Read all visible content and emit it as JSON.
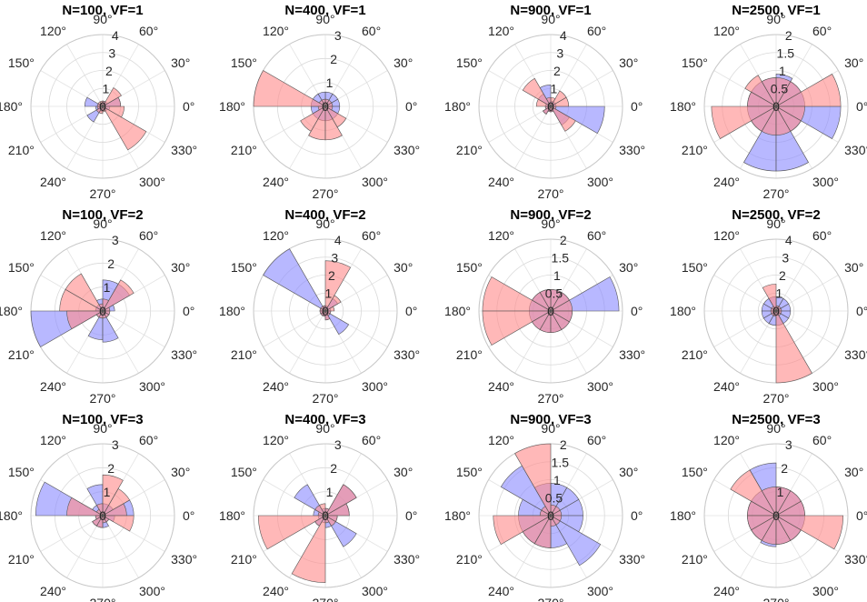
{
  "colors": {
    "series_a": "#8c8cff",
    "series_b": "#ff8c8c",
    "grid": "#d9d9d9",
    "text": "#262626"
  },
  "chart_data": [
    {
      "type": "polar-histogram",
      "title": "N=100, VF=1",
      "angle_ticks": [
        "0°",
        "30°",
        "60°",
        "90°",
        "120°",
        "150°",
        "180°",
        "210°",
        "240°",
        "270°",
        "300°",
        "330°"
      ],
      "r_ticks": [
        "0",
        "1",
        "2",
        "3",
        "4"
      ],
      "rlim": [
        0,
        4
      ],
      "series": [
        {
          "values": [
            1.0,
            0.3,
            0.3,
            0.2,
            0.2,
            1.0,
            0.4,
            1.0,
            0.3,
            0.2,
            0.3,
            0.4
          ]
        },
        {
          "values": [
            1.0,
            1.2,
            0.3,
            0.3,
            0.3,
            0.3,
            0.3,
            0.4,
            0.4,
            0.3,
            2.8,
            1.2
          ]
        }
      ]
    },
    {
      "type": "polar-histogram",
      "title": "N=400, VF=1",
      "angle_ticks": [
        "0°",
        "30°",
        "60°",
        "90°",
        "120°",
        "150°",
        "180°",
        "210°",
        "240°",
        "270°",
        "300°",
        "330°"
      ],
      "r_ticks": [
        "0",
        "1",
        "2",
        "3"
      ],
      "rlim": [
        0,
        3
      ],
      "series": [
        {
          "values": [
            0.6,
            0.6,
            0.6,
            0.6,
            0.6,
            0.6,
            0.6,
            0.6,
            0.6,
            0.6,
            0.6,
            0.6
          ]
        },
        {
          "values": [
            0.3,
            0.3,
            0.3,
            0.3,
            0.3,
            3.0,
            0.3,
            1.2,
            1.4,
            1.4,
            1.0,
            0.3
          ]
        }
      ]
    },
    {
      "type": "polar-histogram",
      "title": "N=900, VF=1",
      "angle_ticks": [
        "0°",
        "30°",
        "60°",
        "90°",
        "120°",
        "150°",
        "180°",
        "210°",
        "240°",
        "270°",
        "300°",
        "330°"
      ],
      "r_ticks": [
        "0",
        "1",
        "2",
        "3",
        "4"
      ],
      "rlim": [
        0,
        4
      ],
      "series": [
        {
          "values": [
            0.3,
            0.3,
            0.3,
            1.2,
            0.8,
            0.3,
            0.3,
            0.5,
            0.3,
            0.3,
            1.2,
            3.0
          ]
        },
        {
          "values": [
            1.0,
            1.0,
            0.5,
            0.5,
            1.8,
            0.8,
            0.3,
            0.5,
            0.3,
            0.3,
            1.6,
            0.3
          ]
        }
      ]
    },
    {
      "type": "polar-histogram",
      "title": "N=2500, VF=1",
      "angle_ticks": [
        "0°",
        "30°",
        "60°",
        "90°",
        "120°",
        "150°",
        "180°",
        "210°",
        "240°",
        "270°",
        "300°",
        "330°"
      ],
      "r_ticks": [
        "0",
        "0.5",
        "1",
        "1.5",
        "2"
      ],
      "rlim": [
        0,
        2
      ],
      "series": [
        {
          "values": [
            0.8,
            0.8,
            0.9,
            0.8,
            0.8,
            0.8,
            0.8,
            0.8,
            1.8,
            1.8,
            0.8,
            1.8
          ]
        },
        {
          "values": [
            1.8,
            0.8,
            0.8,
            0.8,
            1.0,
            0.8,
            1.8,
            0.8,
            0.8,
            0.8,
            0.8,
            0.8
          ]
        }
      ]
    },
    {
      "type": "polar-histogram",
      "title": "N=100, VF=2",
      "angle_ticks": [
        "0°",
        "30°",
        "60°",
        "90°",
        "120°",
        "150°",
        "180°",
        "210°",
        "240°",
        "270°",
        "300°",
        "330°"
      ],
      "r_ticks": [
        "0",
        "1",
        "2",
        "3"
      ],
      "rlim": [
        0,
        3
      ],
      "series": [
        {
          "values": [
            0.5,
            1.3,
            1.3,
            0.5,
            0.3,
            0.3,
            3.3,
            0.3,
            1.2,
            1.3,
            0.3,
            0.3
          ]
        },
        {
          "values": [
            0.3,
            1.5,
            0.5,
            0.3,
            1.8,
            1.8,
            1.5,
            0.3,
            0.3,
            0.3,
            0.3,
            0.3
          ]
        }
      ]
    },
    {
      "type": "polar-histogram",
      "title": "N=400, VF=2",
      "angle_ticks": [
        "0°",
        "30°",
        "60°",
        "90°",
        "120°",
        "150°",
        "180°",
        "210°",
        "240°",
        "270°",
        "300°",
        "330°"
      ],
      "r_ticks": [
        "0",
        "1",
        "2",
        "3",
        "4"
      ],
      "rlim": [
        0,
        4
      ],
      "series": [
        {
          "values": [
            0.3,
            0.8,
            0.3,
            0.3,
            4.0,
            0.3,
            0.3,
            0.3,
            0.3,
            0.5,
            1.5,
            0.3
          ]
        },
        {
          "values": [
            0.5,
            1.0,
            2.8,
            0.3,
            0.3,
            0.3,
            0.3,
            0.3,
            0.3,
            0.5,
            0.3,
            0.3
          ]
        }
      ]
    },
    {
      "type": "polar-histogram",
      "title": "N=900, VF=2",
      "angle_ticks": [
        "0°",
        "30°",
        "60°",
        "90°",
        "120°",
        "150°",
        "180°",
        "210°",
        "240°",
        "270°",
        "300°",
        "330°"
      ],
      "r_ticks": [
        "0",
        "0.5",
        "1",
        "1.5",
        "2"
      ],
      "rlim": [
        0,
        2
      ],
      "series": [
        {
          "values": [
            1.9,
            0.6,
            0.6,
            0.6,
            0.6,
            0.6,
            0.6,
            0.6,
            0.6,
            0.6,
            0.6,
            0.6
          ]
        },
        {
          "values": [
            0.6,
            0.6,
            0.6,
            0.6,
            0.6,
            1.9,
            1.9,
            0.6,
            0.6,
            0.6,
            0.6,
            0.6
          ]
        }
      ]
    },
    {
      "type": "polar-histogram",
      "title": "N=2500, VF=2",
      "angle_ticks": [
        "0°",
        "30°",
        "60°",
        "90°",
        "120°",
        "150°",
        "180°",
        "210°",
        "240°",
        "270°",
        "300°",
        "330°"
      ],
      "r_ticks": [
        "0",
        "1",
        "2",
        "3",
        "4"
      ],
      "rlim": [
        0,
        4
      ],
      "series": [
        {
          "values": [
            0.8,
            0.8,
            0.8,
            0.8,
            0.8,
            0.8,
            0.8,
            0.8,
            0.8,
            0.8,
            0.8,
            0.8
          ]
        },
        {
          "values": [
            0.3,
            0.3,
            0.3,
            1.5,
            0.3,
            0.3,
            0.3,
            0.3,
            0.3,
            4.0,
            0.3,
            0.3
          ]
        }
      ]
    },
    {
      "type": "polar-histogram",
      "title": "N=100, VF=3",
      "angle_ticks": [
        "0°",
        "30°",
        "60°",
        "90°",
        "120°",
        "150°",
        "180°",
        "210°",
        "240°",
        "270°",
        "300°",
        "330°"
      ],
      "r_ticks": [
        "0",
        "1",
        "2",
        "3"
      ],
      "rlim": [
        0,
        3
      ],
      "series": [
        {
          "values": [
            1.3,
            0.5,
            0.5,
            1.3,
            0.5,
            2.8,
            0.3,
            0.5,
            0.5,
            0.5,
            0.3,
            0.5
          ]
        },
        {
          "values": [
            1.0,
            1.3,
            1.7,
            0.5,
            0.3,
            1.5,
            0.3,
            0.5,
            0.5,
            0.3,
            0.3,
            1.3
          ]
        }
      ]
    },
    {
      "type": "polar-histogram",
      "title": "N=400, VF=3",
      "angle_ticks": [
        "0°",
        "30°",
        "60°",
        "90°",
        "120°",
        "150°",
        "180°",
        "210°",
        "240°",
        "270°",
        "300°",
        "330°"
      ],
      "r_ticks": [
        "0",
        "1",
        "2",
        "3"
      ],
      "rlim": [
        0,
        3
      ],
      "series": [
        {
          "values": [
            1.0,
            1.5,
            0.3,
            0.3,
            1.5,
            0.5,
            0.3,
            0.5,
            0.3,
            0.5,
            1.5,
            0.5
          ]
        },
        {
          "values": [
            1.0,
            1.5,
            0.3,
            0.5,
            0.5,
            0.3,
            2.8,
            0.5,
            2.8,
            0.3,
            0.5,
            0.5
          ]
        }
      ]
    },
    {
      "type": "polar-histogram",
      "title": "N=900, VF=3",
      "angle_ticks": [
        "0°",
        "30°",
        "60°",
        "90°",
        "120°",
        "150°",
        "180°",
        "210°",
        "240°",
        "270°",
        "300°",
        "330°"
      ],
      "r_ticks": [
        "0",
        "0.5",
        "1",
        "1.5",
        "2"
      ],
      "rlim": [
        0,
        2
      ],
      "series": [
        {
          "values": [
            0.9,
            0.9,
            0.9,
            0.9,
            1.6,
            0.9,
            0.9,
            0.9,
            0.9,
            0.9,
            1.6,
            0.9
          ]
        },
        {
          "values": [
            0.3,
            0.3,
            0.3,
            2.0,
            0.3,
            0.3,
            1.6,
            0.9,
            0.9,
            0.3,
            0.3,
            0.3
          ]
        }
      ]
    },
    {
      "type": "polar-histogram",
      "title": "N=2500, VF=3",
      "angle_ticks": [
        "0°",
        "30°",
        "60°",
        "90°",
        "120°",
        "150°",
        "180°",
        "210°",
        "240°",
        "270°",
        "300°",
        "330°"
      ],
      "r_ticks": [
        "0",
        "1",
        "2",
        "3"
      ],
      "rlim": [
        0,
        3
      ],
      "series": [
        {
          "values": [
            1.2,
            1.2,
            1.2,
            2.2,
            1.2,
            1.2,
            1.2,
            1.2,
            1.3,
            1.2,
            1.2,
            1.2
          ]
        },
        {
          "values": [
            1.2,
            1.2,
            1.2,
            1.2,
            2.2,
            1.2,
            1.2,
            1.2,
            1.2,
            1.2,
            1.2,
            2.8
          ]
        }
      ]
    }
  ]
}
